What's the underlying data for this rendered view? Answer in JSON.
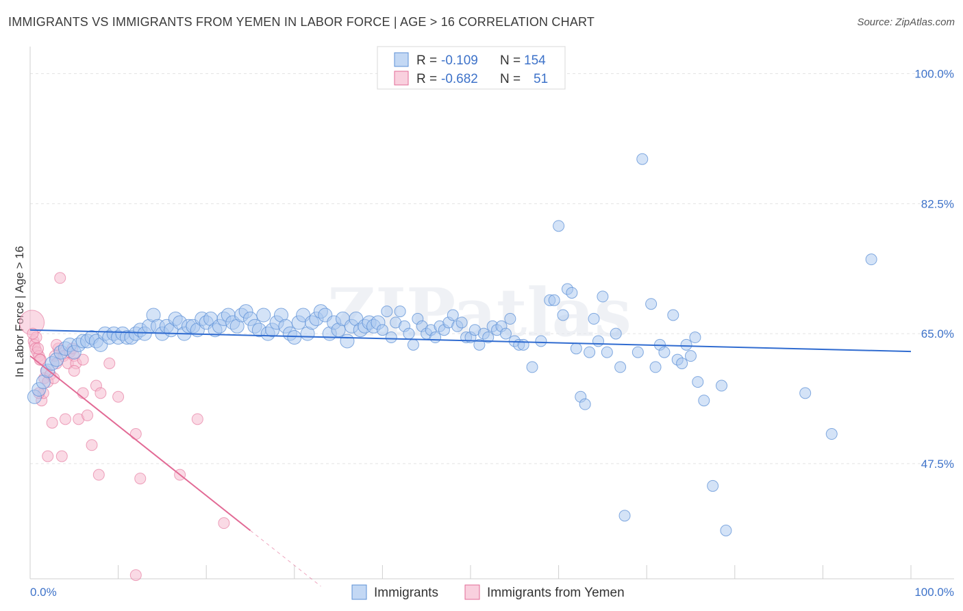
{
  "title": "IMMIGRANTS VS IMMIGRANTS FROM YEMEN IN LABOR FORCE | AGE > 16 CORRELATION CHART",
  "source": "Source: ZipAtlas.com",
  "colors": {
    "blue": "#5b8fd6",
    "blue_fill": "#a9c8f0",
    "pink": "#e26a95",
    "pink_fill": "#f6bcd0",
    "axis_text": "#3d72c9"
  },
  "legend": {
    "rows": [
      {
        "r_label": "R =",
        "r_value": "-0.109",
        "n_label": "N =",
        "n_value": "154",
        "series": "blue"
      },
      {
        "r_label": "R =",
        "r_value": "-0.682",
        "n_label": "N =",
        "n_value": "51",
        "series": "pink"
      }
    ]
  },
  "chart_data": {
    "type": "scatter",
    "title": "IMMIGRANTS VS IMMIGRANTS FROM YEMEN IN LABOR FORCE | AGE > 16 CORRELATION CHART",
    "xlabel": "",
    "ylabel": "In Labor Force | Age > 16",
    "xlim": [
      0,
      100
    ],
    "ylim": [
      32,
      103
    ],
    "x_tick_labels": [
      "0.0%",
      "100.0%"
    ],
    "y_ticks": [
      47.5,
      65.0,
      82.5,
      100.0
    ],
    "y_tick_labels": [
      "47.5%",
      "65.0%",
      "82.5%",
      "100.0%"
    ],
    "series": [
      {
        "name": "Immigrants",
        "color": "blue",
        "trend": {
          "x": [
            0,
            100
          ],
          "y": [
            65.5,
            62.6
          ]
        },
        "points": [
          {
            "x": 0.5,
            "y": 56.5
          },
          {
            "x": 1,
            "y": 57.5
          },
          {
            "x": 1.5,
            "y": 58.5
          },
          {
            "x": 2,
            "y": 60
          },
          {
            "x": 2.5,
            "y": 61
          },
          {
            "x": 3,
            "y": 61.5
          },
          {
            "x": 3.5,
            "y": 62.5
          },
          {
            "x": 4,
            "y": 63
          },
          {
            "x": 4.5,
            "y": 63.5
          },
          {
            "x": 5,
            "y": 62.5
          },
          {
            "x": 5.5,
            "y": 63.5
          },
          {
            "x": 6,
            "y": 64
          },
          {
            "x": 6.5,
            "y": 64
          },
          {
            "x": 7,
            "y": 64.5
          },
          {
            "x": 7.5,
            "y": 64
          },
          {
            "x": 8,
            "y": 63.5
          },
          {
            "x": 8.5,
            "y": 65
          },
          {
            "x": 9,
            "y": 64.5
          },
          {
            "x": 9.5,
            "y": 65
          },
          {
            "x": 10,
            "y": 64.5
          },
          {
            "x": 10.5,
            "y": 65
          },
          {
            "x": 11,
            "y": 64.5
          },
          {
            "x": 11.5,
            "y": 64.5
          },
          {
            "x": 12,
            "y": 65
          },
          {
            "x": 12.5,
            "y": 65.5
          },
          {
            "x": 13,
            "y": 65
          },
          {
            "x": 13.5,
            "y": 66
          },
          {
            "x": 14,
            "y": 67.5
          },
          {
            "x": 14.5,
            "y": 66
          },
          {
            "x": 15,
            "y": 65
          },
          {
            "x": 15.5,
            "y": 66
          },
          {
            "x": 16,
            "y": 65.5
          },
          {
            "x": 16.5,
            "y": 67
          },
          {
            "x": 17,
            "y": 66.5
          },
          {
            "x": 17.5,
            "y": 65
          },
          {
            "x": 18,
            "y": 66
          },
          {
            "x": 18.5,
            "y": 66
          },
          {
            "x": 19,
            "y": 65.5
          },
          {
            "x": 19.5,
            "y": 67
          },
          {
            "x": 20,
            "y": 66.5
          },
          {
            "x": 20.5,
            "y": 67
          },
          {
            "x": 21,
            "y": 65.5
          },
          {
            "x": 21.5,
            "y": 66
          },
          {
            "x": 22,
            "y": 67
          },
          {
            "x": 22.5,
            "y": 67.5
          },
          {
            "x": 23,
            "y": 66.5
          },
          {
            "x": 23.5,
            "y": 66
          },
          {
            "x": 24,
            "y": 67.5
          },
          {
            "x": 24.5,
            "y": 68
          },
          {
            "x": 25,
            "y": 67
          },
          {
            "x": 25.5,
            "y": 66
          },
          {
            "x": 26,
            "y": 65.5
          },
          {
            "x": 26.5,
            "y": 67.5
          },
          {
            "x": 27,
            "y": 65
          },
          {
            "x": 27.5,
            "y": 65.5
          },
          {
            "x": 28,
            "y": 66.5
          },
          {
            "x": 28.5,
            "y": 67.5
          },
          {
            "x": 29,
            "y": 66
          },
          {
            "x": 29.5,
            "y": 65
          },
          {
            "x": 30,
            "y": 64.5
          },
          {
            "x": 30.5,
            "y": 66.5
          },
          {
            "x": 31,
            "y": 67.5
          },
          {
            "x": 31.5,
            "y": 65
          },
          {
            "x": 32,
            "y": 66.5
          },
          {
            "x": 32.5,
            "y": 67
          },
          {
            "x": 33,
            "y": 68
          },
          {
            "x": 33.5,
            "y": 67.5
          },
          {
            "x": 34,
            "y": 65
          },
          {
            "x": 34.5,
            "y": 66.5
          },
          {
            "x": 35,
            "y": 65.5
          },
          {
            "x": 35.5,
            "y": 67
          },
          {
            "x": 36,
            "y": 64
          },
          {
            "x": 36.5,
            "y": 66
          },
          {
            "x": 37,
            "y": 67
          },
          {
            "x": 37.5,
            "y": 65.5
          },
          {
            "x": 38,
            "y": 66
          },
          {
            "x": 38.5,
            "y": 66.5
          },
          {
            "x": 39,
            "y": 66
          },
          {
            "x": 39.5,
            "y": 66.5
          },
          {
            "x": 40,
            "y": 65.5
          },
          {
            "x": 40.5,
            "y": 68
          },
          {
            "x": 41,
            "y": 64.5
          },
          {
            "x": 41.5,
            "y": 66.5
          },
          {
            "x": 42,
            "y": 68
          },
          {
            "x": 42.5,
            "y": 66
          },
          {
            "x": 43,
            "y": 65
          },
          {
            "x": 43.5,
            "y": 63.5
          },
          {
            "x": 44,
            "y": 67
          },
          {
            "x": 44.5,
            "y": 66
          },
          {
            "x": 45,
            "y": 65
          },
          {
            "x": 45.5,
            "y": 65.5
          },
          {
            "x": 46,
            "y": 64.5
          },
          {
            "x": 46.5,
            "y": 66
          },
          {
            "x": 47,
            "y": 65.5
          },
          {
            "x": 47.5,
            "y": 66.5
          },
          {
            "x": 48,
            "y": 67.5
          },
          {
            "x": 48.5,
            "y": 66
          },
          {
            "x": 49,
            "y": 66.5
          },
          {
            "x": 49.5,
            "y": 64.5
          },
          {
            "x": 50,
            "y": 64.5
          },
          {
            "x": 50.5,
            "y": 65.5
          },
          {
            "x": 51,
            "y": 63.5
          },
          {
            "x": 51.5,
            "y": 65
          },
          {
            "x": 52,
            "y": 64.5
          },
          {
            "x": 52.5,
            "y": 66
          },
          {
            "x": 53,
            "y": 65.5
          },
          {
            "x": 53.5,
            "y": 66
          },
          {
            "x": 54,
            "y": 65
          },
          {
            "x": 54.5,
            "y": 67
          },
          {
            "x": 55,
            "y": 64
          },
          {
            "x": 55.5,
            "y": 63.5
          },
          {
            "x": 56,
            "y": 63.5
          },
          {
            "x": 57,
            "y": 60.5
          },
          {
            "x": 58,
            "y": 64
          },
          {
            "x": 59,
            "y": 69.5
          },
          {
            "x": 59.5,
            "y": 69.5
          },
          {
            "x": 60,
            "y": 79.5
          },
          {
            "x": 60.5,
            "y": 67.5
          },
          {
            "x": 61,
            "y": 71
          },
          {
            "x": 61.5,
            "y": 70.5
          },
          {
            "x": 62,
            "y": 63
          },
          {
            "x": 62.5,
            "y": 56.5
          },
          {
            "x": 63,
            "y": 55.5
          },
          {
            "x": 63.5,
            "y": 62.5
          },
          {
            "x": 64,
            "y": 67
          },
          {
            "x": 64.5,
            "y": 64
          },
          {
            "x": 65,
            "y": 70
          },
          {
            "x": 65.5,
            "y": 62.5
          },
          {
            "x": 66.5,
            "y": 65
          },
          {
            "x": 67,
            "y": 60.5
          },
          {
            "x": 67.5,
            "y": 40.5
          },
          {
            "x": 69,
            "y": 62.5
          },
          {
            "x": 69.5,
            "y": 88.5
          },
          {
            "x": 70.5,
            "y": 69
          },
          {
            "x": 71,
            "y": 60.5
          },
          {
            "x": 71.5,
            "y": 63.5
          },
          {
            "x": 72,
            "y": 62.5
          },
          {
            "x": 73,
            "y": 67.5
          },
          {
            "x": 73.5,
            "y": 61.5
          },
          {
            "x": 74,
            "y": 61
          },
          {
            "x": 74.5,
            "y": 63.5
          },
          {
            "x": 75,
            "y": 62
          },
          {
            "x": 75.5,
            "y": 64.5
          },
          {
            "x": 75.8,
            "y": 58.5
          },
          {
            "x": 76.5,
            "y": 56
          },
          {
            "x": 77.5,
            "y": 44.5
          },
          {
            "x": 78.5,
            "y": 58
          },
          {
            "x": 79,
            "y": 38.5
          },
          {
            "x": 88,
            "y": 57
          },
          {
            "x": 91,
            "y": 51.5
          },
          {
            "x": 95.5,
            "y": 75
          }
        ]
      },
      {
        "name": "Immigrants from Yemen",
        "color": "pink",
        "trend": {
          "x": [
            0,
            25
          ],
          "y": [
            62,
            38.5
          ]
        },
        "trend_dashed": {
          "x": [
            25,
            33
          ],
          "y": [
            38.5,
            31
          ]
        },
        "points": [
          {
            "x": 0.2,
            "y": 66.5
          },
          {
            "x": 0.4,
            "y": 64
          },
          {
            "x": 0.5,
            "y": 63.5
          },
          {
            "x": 0.6,
            "y": 63
          },
          {
            "x": 0.7,
            "y": 64.5
          },
          {
            "x": 0.8,
            "y": 62.5
          },
          {
            "x": 1,
            "y": 62
          },
          {
            "x": 1.2,
            "y": 61.5
          },
          {
            "x": 1.3,
            "y": 56
          },
          {
            "x": 1.5,
            "y": 57
          },
          {
            "x": 1.6,
            "y": 59
          },
          {
            "x": 1.8,
            "y": 60
          },
          {
            "x": 2,
            "y": 48.5
          },
          {
            "x": 2.3,
            "y": 59.5
          },
          {
            "x": 2.5,
            "y": 53
          },
          {
            "x": 2.8,
            "y": 62
          },
          {
            "x": 3,
            "y": 61
          },
          {
            "x": 3.2,
            "y": 63
          },
          {
            "x": 3.4,
            "y": 72.5
          },
          {
            "x": 3.6,
            "y": 48.5
          },
          {
            "x": 3.8,
            "y": 62
          },
          {
            "x": 4,
            "y": 53.5
          },
          {
            "x": 4.3,
            "y": 61
          },
          {
            "x": 4.5,
            "y": 62.5
          },
          {
            "x": 4.8,
            "y": 63
          },
          {
            "x": 5,
            "y": 62
          },
          {
            "x": 5.2,
            "y": 61
          },
          {
            "x": 5.5,
            "y": 53.5
          },
          {
            "x": 6,
            "y": 57
          },
          {
            "x": 6.5,
            "y": 54
          },
          {
            "x": 7,
            "y": 50
          },
          {
            "x": 7.5,
            "y": 58
          },
          {
            "x": 7.8,
            "y": 46
          },
          {
            "x": 8,
            "y": 57
          },
          {
            "x": 9,
            "y": 61
          },
          {
            "x": 10,
            "y": 56.5
          },
          {
            "x": 12,
            "y": 51.5
          },
          {
            "x": 12.5,
            "y": 45.5
          },
          {
            "x": 17,
            "y": 46
          },
          {
            "x": 19,
            "y": 53.5
          },
          {
            "x": 22,
            "y": 39.5
          },
          {
            "x": 12,
            "y": 32.5
          },
          {
            "x": 1,
            "y": 57
          },
          {
            "x": 2,
            "y": 58.5
          },
          {
            "x": 0.9,
            "y": 63
          },
          {
            "x": 1.1,
            "y": 61.5
          },
          {
            "x": 3,
            "y": 63.5
          },
          {
            "x": 5,
            "y": 60
          },
          {
            "x": 6,
            "y": 61.5
          },
          {
            "x": 2.7,
            "y": 59
          },
          {
            "x": 0.3,
            "y": 65
          }
        ]
      }
    ]
  },
  "bottom_legend": [
    {
      "label": "Immigrants",
      "series": "blue"
    },
    {
      "label": "Immigrants from Yemen",
      "series": "pink"
    }
  ],
  "watermark": "ZIPatlas"
}
